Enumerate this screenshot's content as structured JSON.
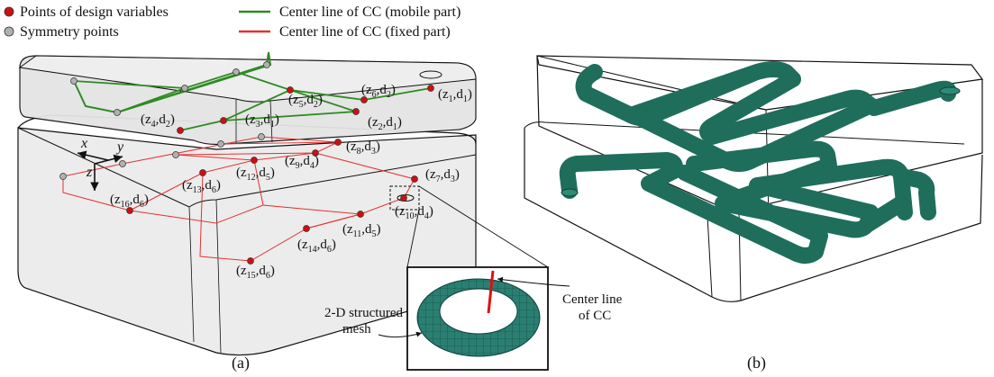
{
  "legend": {
    "design_points": "Points of design variables",
    "symmetry_points": "Symmetry points",
    "mobile_line": "Center line of CC (mobile part)",
    "fixed_line": "Center line of CC (fixed part)"
  },
  "colors": {
    "design_point": "#cc1111",
    "symmetry_point": "#b0b0b0",
    "mobile_line": "#2e8b22",
    "fixed_line": "#e23333",
    "mesh_fill": "#2f7b78",
    "channel_fill": "#1f6e5c",
    "box_face": "#ececec"
  },
  "axes": {
    "x": "x",
    "y": "y",
    "z": "z"
  },
  "point_labels": [
    {
      "z": "1",
      "d": "1"
    },
    {
      "z": "2",
      "d": "1"
    },
    {
      "z": "3",
      "d": "1"
    },
    {
      "z": "4",
      "d": "2"
    },
    {
      "z": "5",
      "d": "2"
    },
    {
      "z": "6",
      "d": "2"
    },
    {
      "z": "7",
      "d": "3"
    },
    {
      "z": "8",
      "d": "3"
    },
    {
      "z": "9",
      "d": "4"
    },
    {
      "z": "10",
      "d": "4"
    },
    {
      "z": "11",
      "d": "5"
    },
    {
      "z": "12",
      "d": "5"
    },
    {
      "z": "13",
      "d": "6"
    },
    {
      "z": "14",
      "d": "6"
    },
    {
      "z": "15",
      "d": "6"
    },
    {
      "z": "16",
      "d": "6"
    }
  ],
  "inset": {
    "mesh_label_line1": "2-D structured",
    "mesh_label_line2": "mesh",
    "center_label_line1": "Center line",
    "center_label_line2": "of CC"
  },
  "captions": {
    "a": "(a)",
    "b": "(b)"
  }
}
